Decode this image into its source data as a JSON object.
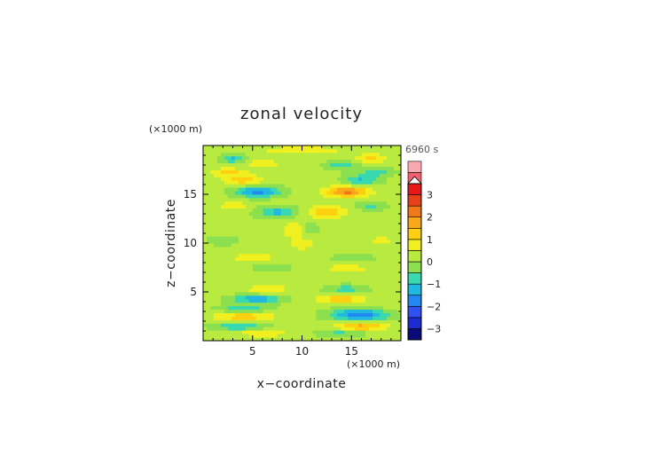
{
  "chart_data": {
    "type": "heatmap",
    "title": "zonal velocity",
    "time_label": "6960 s",
    "xlabel": "x−coordinate",
    "ylabel": "z−coordinate",
    "x_unit": "(×1000 m)",
    "y_unit": "(×1000 m)",
    "xlim": [
      0,
      20
    ],
    "ylim": [
      0,
      20
    ],
    "x_ticks": [
      {
        "value": 5,
        "label": "5"
      },
      {
        "value": 10,
        "label": "10"
      },
      {
        "value": 15,
        "label": "15"
      }
    ],
    "y_ticks": [
      {
        "value": 5,
        "label": "5"
      },
      {
        "value": 10,
        "label": "10"
      },
      {
        "value": 15,
        "label": "15"
      }
    ],
    "colorbar": {
      "min": -3.5,
      "max": 3.5,
      "step": 0.5,
      "over_arrow": true,
      "tick_labels": [
        {
          "value": 3,
          "label": "3"
        },
        {
          "value": 2,
          "label": "2"
        },
        {
          "value": 1,
          "label": "1"
        },
        {
          "value": 0,
          "label": "0"
        },
        {
          "value": -1,
          "label": "−1"
        },
        {
          "value": -2,
          "label": "−2"
        },
        {
          "value": -3,
          "label": "−3"
        }
      ],
      "colors": [
        "#0a0a78",
        "#1c2ad2",
        "#3050f0",
        "#2088f0",
        "#20b8e0",
        "#38d8b0",
        "#8ce050",
        "#b8ea40",
        "#f0f020",
        "#ffd010",
        "#f8a818",
        "#f07818",
        "#e84018",
        "#e81818",
        "#f06070",
        "#f8a8b0"
      ]
    },
    "features": [
      {
        "x": 5.5,
        "z": 15.3,
        "sx": 2.2,
        "sz": 0.55,
        "value": -1.9
      },
      {
        "x": 14.5,
        "z": 15.3,
        "sx": 2.2,
        "sz": 0.55,
        "value": 2.0
      },
      {
        "x": 4.0,
        "z": 16.5,
        "sx": 1.8,
        "sz": 0.5,
        "value": 1.2
      },
      {
        "x": 16.0,
        "z": 16.5,
        "sx": 1.8,
        "sz": 0.5,
        "value": -1.2
      },
      {
        "x": 7.5,
        "z": 13.2,
        "sx": 2.0,
        "sz": 0.6,
        "value": -1.3
      },
      {
        "x": 12.5,
        "z": 13.2,
        "sx": 2.0,
        "sz": 0.6,
        "value": 1.3
      },
      {
        "x": 3.0,
        "z": 13.8,
        "sx": 1.5,
        "sz": 0.45,
        "value": 0.8
      },
      {
        "x": 17.0,
        "z": 13.8,
        "sx": 1.5,
        "sz": 0.45,
        "value": -0.8
      },
      {
        "x": 9.5,
        "z": 11.5,
        "sx": 1.2,
        "sz": 0.6,
        "value": 1.1
      },
      {
        "x": 10.5,
        "z": 11.5,
        "sx": 1.2,
        "sz": 0.6,
        "value": -1.0
      },
      {
        "x": 3.0,
        "z": 18.7,
        "sx": 1.2,
        "sz": 0.45,
        "value": -1.2
      },
      {
        "x": 17.0,
        "z": 18.7,
        "sx": 1.5,
        "sz": 0.45,
        "value": 1.0
      },
      {
        "x": 14.0,
        "z": 18.0,
        "sx": 1.5,
        "sz": 0.45,
        "value": -1.0
      },
      {
        "x": 6.0,
        "z": 18.2,
        "sx": 1.5,
        "sz": 0.45,
        "value": 0.9
      },
      {
        "x": 2.5,
        "z": 17.3,
        "sx": 1.8,
        "sz": 0.4,
        "value": 1.0
      },
      {
        "x": 17.5,
        "z": 17.3,
        "sx": 1.8,
        "sz": 0.4,
        "value": -0.9
      },
      {
        "x": 5.0,
        "z": 8.5,
        "sx": 2.2,
        "sz": 0.45,
        "value": 0.7
      },
      {
        "x": 15.0,
        "z": 8.5,
        "sx": 2.2,
        "sz": 0.45,
        "value": -0.6
      },
      {
        "x": 7.0,
        "z": 7.5,
        "sx": 2.0,
        "sz": 0.4,
        "value": -0.6
      },
      {
        "x": 14.5,
        "z": 7.4,
        "sx": 2.0,
        "sz": 0.4,
        "value": 0.8
      },
      {
        "x": 6.5,
        "z": 5.3,
        "sx": 2.0,
        "sz": 0.45,
        "value": 0.9
      },
      {
        "x": 14.5,
        "z": 5.3,
        "sx": 2.0,
        "sz": 0.45,
        "value": -0.9
      },
      {
        "x": 5.5,
        "z": 4.3,
        "sx": 2.5,
        "sz": 0.45,
        "value": -1.6
      },
      {
        "x": 14.0,
        "z": 4.3,
        "sx": 2.5,
        "sz": 0.45,
        "value": 1.2
      },
      {
        "x": 4.0,
        "z": 3.3,
        "sx": 2.5,
        "sz": 0.4,
        "value": -1.0
      },
      {
        "x": 15.5,
        "z": 3.0,
        "sx": 2.5,
        "sz": 0.4,
        "value": -1.2
      },
      {
        "x": 4.0,
        "z": 2.5,
        "sx": 3.0,
        "sz": 0.45,
        "value": 1.2
      },
      {
        "x": 16.0,
        "z": 2.5,
        "sx": 3.0,
        "sz": 0.45,
        "value": -1.6
      },
      {
        "x": 3.5,
        "z": 1.5,
        "sx": 2.5,
        "sz": 0.4,
        "value": -1.2
      },
      {
        "x": 16.0,
        "z": 1.5,
        "sx": 2.5,
        "sz": 0.4,
        "value": 1.5
      },
      {
        "x": 6.0,
        "z": 0.8,
        "sx": 2.5,
        "sz": 0.35,
        "value": 0.9
      },
      {
        "x": 14.0,
        "z": 0.8,
        "sx": 2.5,
        "sz": 0.35,
        "value": -0.8
      },
      {
        "x": 10.0,
        "z": 10.0,
        "sx": 3.0,
        "sz": 1.5,
        "value": 0.4
      },
      {
        "x": 2.0,
        "z": 10.3,
        "sx": 1.5,
        "sz": 0.5,
        "value": -0.5
      },
      {
        "x": 18.0,
        "z": 10.3,
        "sx": 1.5,
        "sz": 0.5,
        "value": 0.5
      },
      {
        "x": 10.0,
        "z": 19.6,
        "sx": 6.0,
        "sz": 0.35,
        "value": 0.6
      }
    ]
  }
}
